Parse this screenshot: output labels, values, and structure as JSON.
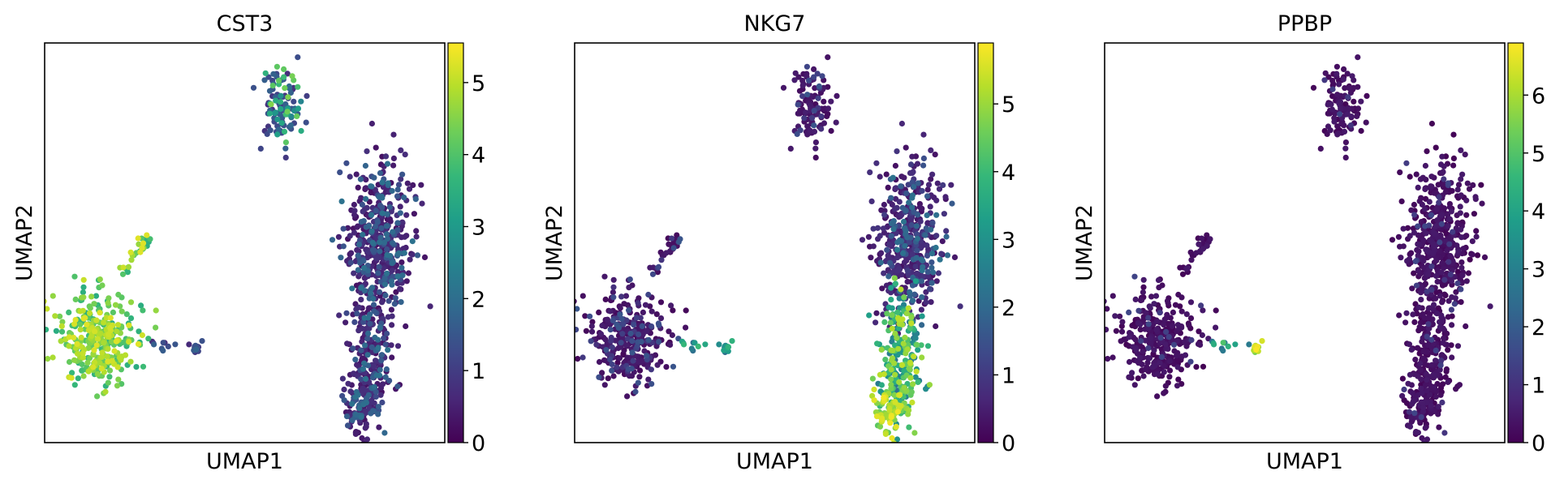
{
  "colormap": [
    "#440154",
    "#482878",
    "#3e4989",
    "#31688e",
    "#26828e",
    "#1f9e89",
    "#35b779",
    "#6ece58",
    "#b5de2b",
    "#fde725"
  ],
  "chart_data": [
    {
      "type": "scatter",
      "title": "CST3",
      "xlabel": "UMAP1",
      "ylabel": "UMAP2",
      "color_range": [
        0,
        5.55
      ],
      "colorbar_ticks": [
        "0",
        "1",
        "2",
        "3",
        "4",
        "5"
      ],
      "grid": false,
      "clusters": [
        {
          "name": "top",
          "center": [
            5.5,
            9.0
          ],
          "color_level": 1.2
        },
        {
          "name": "left",
          "center": [
            -4.0,
            0.8
          ],
          "color_level": 4.1
        },
        {
          "name": "right",
          "center": [
            10.5,
            2.5
          ],
          "color_level": 0.9
        }
      ]
    },
    {
      "type": "scatter",
      "title": "NKG7",
      "xlabel": "UMAP1",
      "ylabel": "UMAP2",
      "color_range": [
        0,
        5.9
      ],
      "colorbar_ticks": [
        "0",
        "1",
        "2",
        "3",
        "4",
        "5"
      ],
      "grid": false,
      "clusters": [
        {
          "name": "top",
          "center": [
            5.5,
            9.0
          ],
          "color_level": 0.5
        },
        {
          "name": "left",
          "center": [
            -4.0,
            0.8
          ],
          "color_level": 0.6
        },
        {
          "name": "right",
          "center": [
            10.5,
            2.5
          ],
          "color_level": 1.6
        }
      ]
    },
    {
      "type": "scatter",
      "title": "PPBP",
      "xlabel": "UMAP1",
      "ylabel": "UMAP2",
      "color_range": [
        0,
        6.9
      ],
      "colorbar_ticks": [
        "0",
        "1",
        "2",
        "3",
        "4",
        "5",
        "6"
      ],
      "grid": false,
      "clusters": [
        {
          "name": "top",
          "center": [
            5.5,
            9.0
          ],
          "color_level": 0.2
        },
        {
          "name": "left",
          "center": [
            -4.0,
            0.8
          ],
          "color_level": 0.2
        },
        {
          "name": "right",
          "center": [
            10.5,
            2.5
          ],
          "color_level": 0.2
        },
        {
          "name": "platelet",
          "center": [
            1.2,
            0.6
          ],
          "color_level": 6.0
        }
      ]
    }
  ]
}
